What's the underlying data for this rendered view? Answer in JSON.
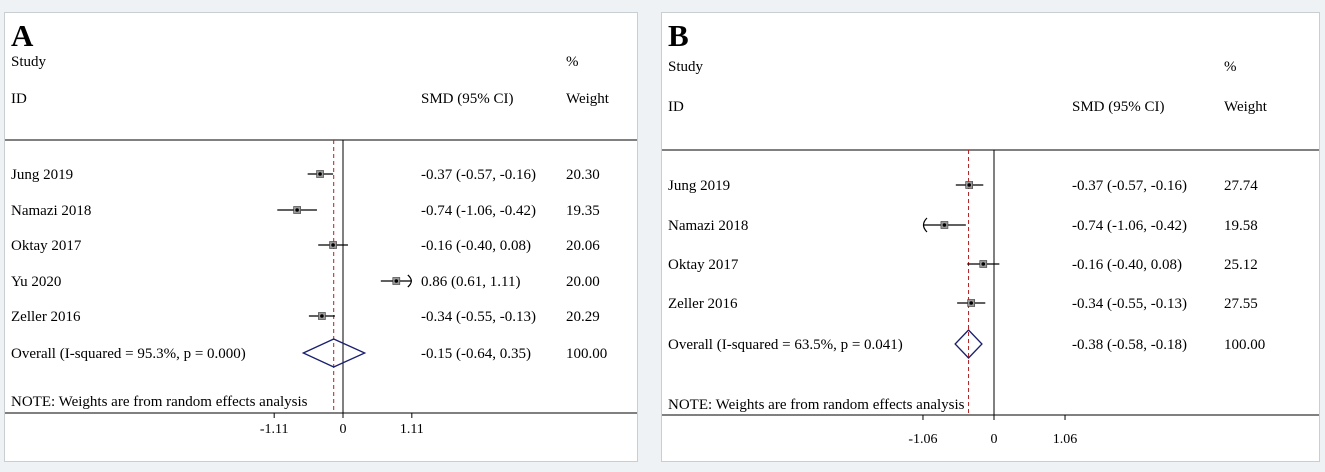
{
  "chart_data": [
    {
      "type": "forest",
      "panel_label": "A",
      "headers": {
        "study_top": "Study",
        "study_bottom": "ID",
        "effect": "SMD (95% CI)",
        "weight_top": "%",
        "weight_bottom": "Weight"
      },
      "xlim": [
        -1.11,
        1.11
      ],
      "xticks": [
        -1.11,
        0,
        1.11
      ],
      "xtick_labels": [
        "-1.11",
        "0",
        "1.11"
      ],
      "studies": [
        {
          "id": "Jung 2019",
          "smd": -0.37,
          "lower": -0.57,
          "upper": -0.16,
          "weight": 20.3,
          "ci_text": "-0.37 (-0.57, -0.16)",
          "weight_text": "20.30"
        },
        {
          "id": "Namazi 2018",
          "smd": -0.74,
          "lower": -1.06,
          "upper": -0.42,
          "weight": 19.35,
          "ci_text": "-0.74 (-1.06, -0.42)",
          "weight_text": "19.35"
        },
        {
          "id": "Oktay 2017",
          "smd": -0.16,
          "lower": -0.4,
          "upper": 0.08,
          "weight": 20.06,
          "ci_text": "-0.16 (-0.40, 0.08)",
          "weight_text": "20.06"
        },
        {
          "id": "Yu 2020",
          "smd": 0.86,
          "lower": 0.61,
          "upper": 1.11,
          "weight": 20.0,
          "ci_text": "0.86 (0.61, 1.11)",
          "weight_text": "20.00",
          "arrow": "right"
        },
        {
          "id": "Zeller 2016",
          "smd": -0.34,
          "lower": -0.55,
          "upper": -0.13,
          "weight": 20.29,
          "ci_text": "-0.34 (-0.55, -0.13)",
          "weight_text": "20.29"
        }
      ],
      "overall": {
        "label": "Overall  (I-squared = 95.3%, p = 0.000)",
        "smd": -0.15,
        "lower": -0.64,
        "upper": 0.35,
        "ci_text": "-0.15 (-0.64, 0.35)",
        "weight_text": "100.00"
      },
      "note": "NOTE: Weights are from random effects analysis"
    },
    {
      "type": "forest",
      "panel_label": "B",
      "headers": {
        "study_top": "Study",
        "study_bottom": "ID",
        "effect": "SMD (95% CI)",
        "weight_top": "%",
        "weight_bottom": "Weight"
      },
      "xlim": [
        -1.06,
        1.06
      ],
      "xticks": [
        -1.06,
        0,
        1.06
      ],
      "xtick_labels": [
        "-1.06",
        "0",
        "1.06"
      ],
      "studies": [
        {
          "id": "Jung 2019",
          "smd": -0.37,
          "lower": -0.57,
          "upper": -0.16,
          "weight": 27.74,
          "ci_text": "-0.37 (-0.57, -0.16)",
          "weight_text": "27.74"
        },
        {
          "id": "Namazi 2018",
          "smd": -0.74,
          "lower": -1.06,
          "upper": -0.42,
          "weight": 19.58,
          "ci_text": "-0.74 (-1.06, -0.42)",
          "weight_text": "19.58",
          "arrow": "left"
        },
        {
          "id": "Oktay 2017",
          "smd": -0.16,
          "lower": -0.4,
          "upper": 0.08,
          "weight": 25.12,
          "ci_text": "-0.16 (-0.40, 0.08)",
          "weight_text": "25.12"
        },
        {
          "id": "Zeller 2016",
          "smd": -0.34,
          "lower": -0.55,
          "upper": -0.13,
          "weight": 27.55,
          "ci_text": "-0.34 (-0.55, -0.13)",
          "weight_text": "27.55"
        }
      ],
      "overall": {
        "label": "Overall  (I-squared = 63.5%, p = 0.041)",
        "smd": -0.38,
        "lower": -0.58,
        "upper": -0.18,
        "ci_text": "-0.38 (-0.58, -0.18)",
        "weight_text": "100.00"
      },
      "note": "NOTE: Weights are from random effects analysis"
    }
  ],
  "colors": {
    "diamond": "#1a1f6e",
    "overall_line": "#b22222",
    "axis": "#000000"
  }
}
